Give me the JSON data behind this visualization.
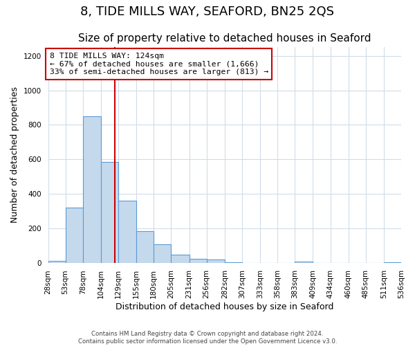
{
  "title": "8, TIDE MILLS WAY, SEAFORD, BN25 2QS",
  "subtitle": "Size of property relative to detached houses in Seaford",
  "xlabel": "Distribution of detached houses by size in Seaford",
  "ylabel": "Number of detached properties",
  "bar_edges": [
    28,
    53,
    78,
    104,
    129,
    155,
    180,
    205,
    231,
    256,
    282,
    307,
    333,
    358,
    383,
    409,
    434,
    460,
    485,
    511,
    536
  ],
  "bar_heights": [
    10,
    320,
    848,
    585,
    360,
    185,
    105,
    47,
    22,
    17,
    3,
    0,
    0,
    0,
    7,
    0,
    0,
    0,
    0,
    2
  ],
  "bar_color": "#c5d9ed",
  "bar_edge_color": "#5b9bd5",
  "property_size": 124,
  "vline_color": "#cc0000",
  "annotation_text": "8 TIDE MILLS WAY: 124sqm\n← 67% of detached houses are smaller (1,666)\n33% of semi-detached houses are larger (813) →",
  "annotation_box_color": "#ffffff",
  "annotation_box_edge_color": "#cc0000",
  "ylim": [
    0,
    1250
  ],
  "yticks": [
    0,
    200,
    400,
    600,
    800,
    1000,
    1200
  ],
  "footer_line1": "Contains HM Land Registry data © Crown copyright and database right 2024.",
  "footer_line2": "Contains public sector information licensed under the Open Government Licence v3.0.",
  "background_color": "#ffffff",
  "grid_color": "#d0dce8",
  "title_fontsize": 13,
  "subtitle_fontsize": 11,
  "tick_label_fontsize": 7.5,
  "axis_label_fontsize": 9
}
